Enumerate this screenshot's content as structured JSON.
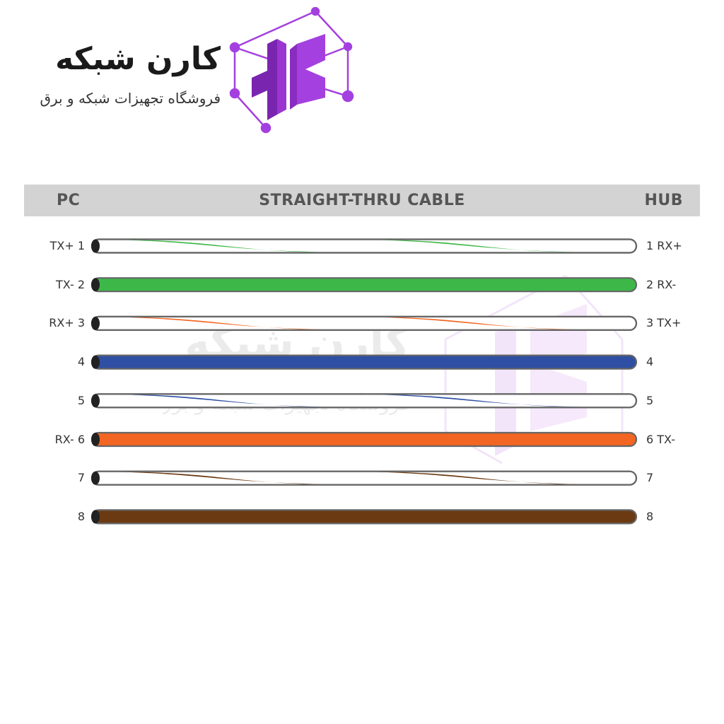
{
  "logo": {
    "name": "کارن شبکه",
    "tagline": "فروشگاه تجهیزات شبکه و برق",
    "color": "#9b30d9"
  },
  "header": {
    "left": "PC",
    "title": "STRAIGHT-THRU CABLE",
    "right": "HUB"
  },
  "wires": [
    {
      "left_label": "TX+ 1",
      "right_label": "1 RX+",
      "color": "#3db848",
      "striped": true
    },
    {
      "left_label": "TX- 2",
      "right_label": "2 RX-",
      "color": "#3db848",
      "striped": false
    },
    {
      "left_label": "RX+ 3",
      "right_label": "3 TX+",
      "color": "#f26522",
      "striped": true
    },
    {
      "left_label": "4",
      "right_label": "4",
      "color": "#2e4fa3",
      "striped": false
    },
    {
      "left_label": "5",
      "right_label": "5",
      "color": "#2e4fa3",
      "striped": true
    },
    {
      "left_label": "RX- 6",
      "right_label": "6 TX-",
      "color": "#f26522",
      "striped": false
    },
    {
      "left_label": "7",
      "right_label": "7",
      "color": "#6b3a12",
      "striped": true
    },
    {
      "left_label": "8",
      "right_label": "8",
      "color": "#6b3a12",
      "striped": false
    }
  ]
}
